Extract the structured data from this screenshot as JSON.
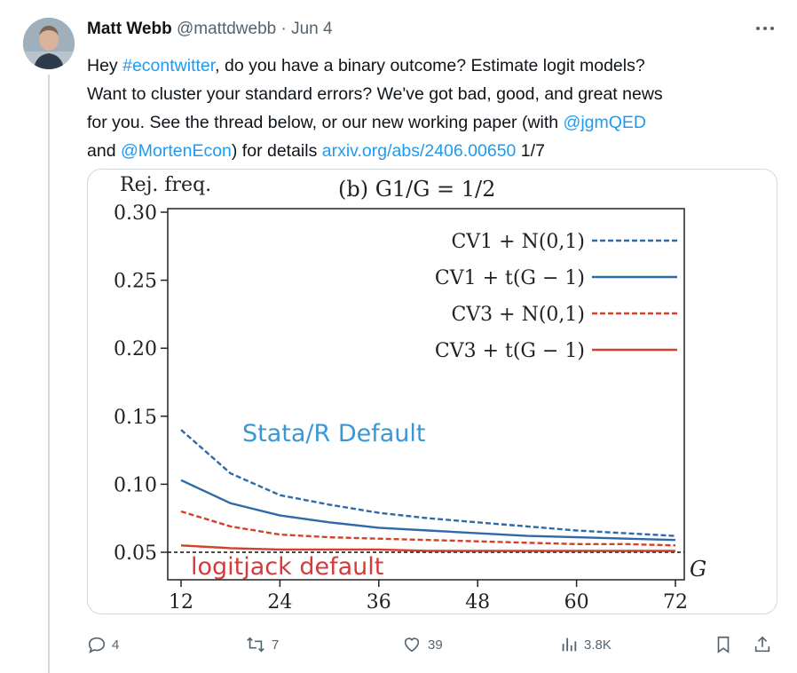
{
  "tweet": {
    "author_name": "Matt Webb",
    "author_handle": "@mattdwebb",
    "separator": " · ",
    "date": "Jun 4",
    "more_icon": "more-horizontal-icon",
    "text": {
      "line1_a": "Hey ",
      "hashtag": "#econtwitter",
      "line1_b": ", do you have a binary outcome? Estimate logit models?",
      "line2": "Want to cluster your standard errors?  We've got bad, good, and great news",
      "line3_a": "for you.  See the thread below, or our new working paper (with ",
      "mention1": "@jgmQED",
      "line4_a": "and ",
      "mention2": "@MortenEcon",
      "line4_b": ") for details ",
      "url": "arxiv.org/abs/2406.00650",
      "line4_c": " 1/7"
    }
  },
  "chart_data": {
    "type": "line",
    "title": "(b) G1/G = 1/2",
    "ylabel": "Rej. freq.",
    "xlabel": "G",
    "xlim": [
      12,
      72
    ],
    "ylim": [
      0.04,
      0.3
    ],
    "xticks": [
      12,
      24,
      36,
      48,
      60,
      72
    ],
    "yticks": [
      "0.05",
      "0.10",
      "0.15",
      "0.20",
      "0.25",
      "0.30"
    ],
    "legend_position": "top-right",
    "x": [
      12,
      18,
      24,
      30,
      36,
      42,
      48,
      54,
      60,
      66,
      72
    ],
    "series": [
      {
        "name": "CV1 + N(0,1)",
        "color": "#2f6aa8",
        "dash": true,
        "values": [
          0.14,
          0.108,
          0.092,
          0.085,
          0.079,
          0.075,
          0.072,
          0.069,
          0.066,
          0.064,
          0.062
        ]
      },
      {
        "name": "CV1 + t(G − 1)",
        "color": "#2f6aa8",
        "dash": false,
        "values": [
          0.103,
          0.086,
          0.077,
          0.072,
          0.068,
          0.066,
          0.064,
          0.062,
          0.061,
          0.06,
          0.059
        ]
      },
      {
        "name": "CV3 + N(0,1)",
        "color": "#d2412c",
        "dash": true,
        "values": [
          0.08,
          0.069,
          0.063,
          0.061,
          0.06,
          0.059,
          0.058,
          0.057,
          0.056,
          0.056,
          0.055
        ]
      },
      {
        "name": "CV3 + t(G − 1)",
        "color": "#d2412c",
        "dash": false,
        "values": [
          0.055,
          0.053,
          0.052,
          0.052,
          0.052,
          0.051,
          0.051,
          0.051,
          0.051,
          0.051,
          0.051
        ]
      }
    ],
    "reference_line": 0.05,
    "annotations": {
      "stata": {
        "text": "Stata/R Default",
        "color": "#3a97d6"
      },
      "logitjack": {
        "text": "logitjack default",
        "color": "#d63a3a"
      }
    }
  },
  "actions": {
    "reply_count": "4",
    "repost_count": "7",
    "like_count": "39",
    "views_count": "3.8K"
  }
}
